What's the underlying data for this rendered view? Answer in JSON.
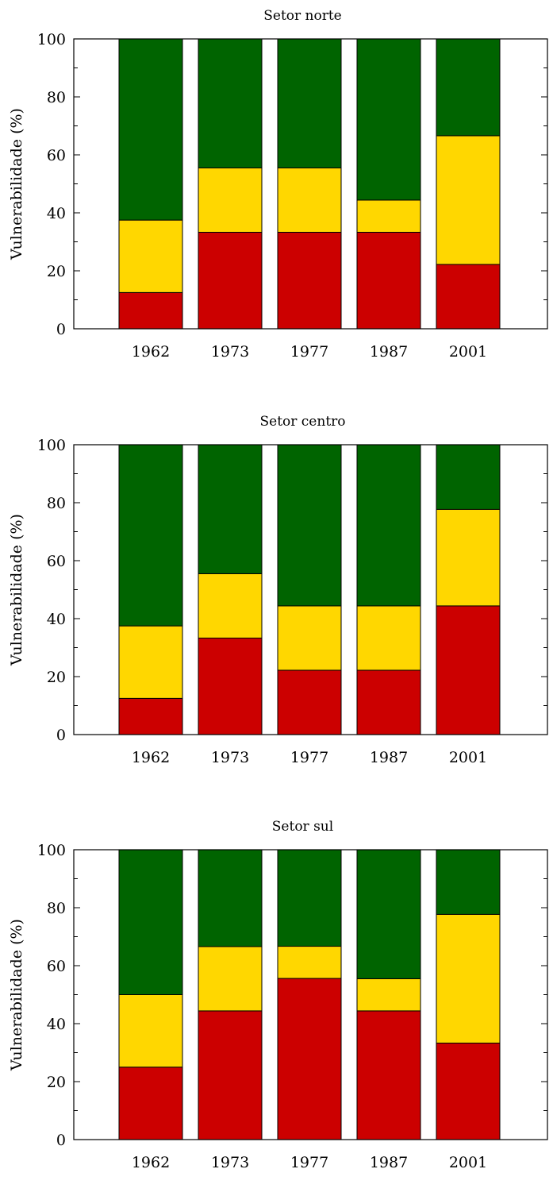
{
  "colors": {
    "low": "#006400",
    "medium": "#FFD700",
    "high": "#CC0000",
    "axis": "#000000"
  },
  "chart_data": [
    {
      "type": "bar",
      "stacked": true,
      "title": "Setor norte",
      "ylabel": "Vulnerabilidade (%)",
      "xlabel": "",
      "ylim": [
        0,
        100
      ],
      "yticks": [
        0,
        20,
        40,
        60,
        80,
        100
      ],
      "categories": [
        "1962",
        "1973",
        "1977",
        "1987",
        "2001"
      ],
      "series": [
        {
          "values": [
            12.5,
            33.3,
            33.3,
            33.3,
            22.2
          ]
        },
        {
          "values": [
            25.0,
            22.2,
            22.2,
            11.1,
            44.4
          ]
        },
        {
          "values": [
            62.5,
            44.5,
            44.5,
            55.6,
            33.4
          ]
        }
      ]
    },
    {
      "type": "bar",
      "stacked": true,
      "title": "Setor centro",
      "ylabel": "Vulnerabilidade (%)",
      "xlabel": "",
      "ylim": [
        0,
        100
      ],
      "yticks": [
        0,
        20,
        40,
        60,
        80,
        100
      ],
      "categories": [
        "1962",
        "1973",
        "1977",
        "1987",
        "2001"
      ],
      "series": [
        {
          "values": [
            12.5,
            33.3,
            22.2,
            22.2,
            44.4
          ]
        },
        {
          "values": [
            25.0,
            22.2,
            22.2,
            22.2,
            33.3
          ]
        },
        {
          "values": [
            62.5,
            44.5,
            55.6,
            55.6,
            22.3
          ]
        }
      ]
    },
    {
      "type": "bar",
      "stacked": true,
      "title": "Setor sul",
      "ylabel": "Vulnerabilidade (%)",
      "xlabel": "",
      "ylim": [
        0,
        100
      ],
      "yticks": [
        0,
        20,
        40,
        60,
        80,
        100
      ],
      "categories": [
        "1962",
        "1973",
        "1977",
        "1987",
        "2001"
      ],
      "series": [
        {
          "values": [
            25.0,
            44.4,
            55.6,
            44.4,
            33.3
          ]
        },
        {
          "values": [
            25.0,
            22.2,
            11.1,
            11.1,
            44.4
          ]
        },
        {
          "values": [
            50.0,
            33.4,
            33.3,
            44.5,
            22.3
          ]
        }
      ]
    }
  ]
}
